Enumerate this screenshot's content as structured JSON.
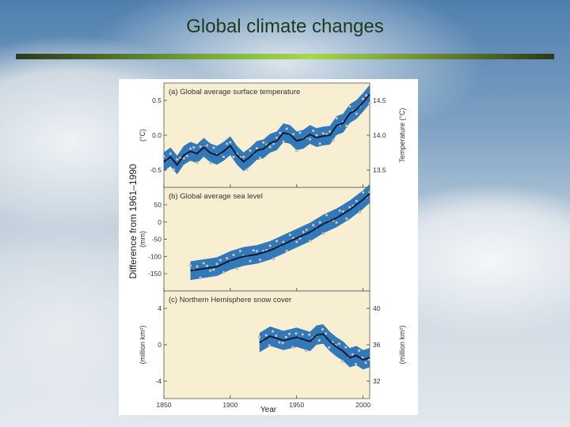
{
  "slide": {
    "title": "Global climate changes"
  },
  "figure": {
    "shared_ylabel": "Difference from 1961–1990",
    "xlabel": "Year",
    "x_ticks": [
      "1850",
      "1900",
      "1950",
      "2000"
    ]
  },
  "colors": {
    "panel_bg": "#f8eed1",
    "band": "#1f6fb5",
    "line": "#0b1a3a",
    "points": "#c8c8c8",
    "title_rule": "#8cc63f"
  },
  "chart_data": [
    {
      "type": "line",
      "title": "(a) Global average surface temperature",
      "ylabel": "(°C)",
      "y2label": "Temperature (°C)",
      "y_ticks": [
        "0.5",
        "0.0",
        "-0.5"
      ],
      "y2_ticks": [
        "14.5",
        "14.0",
        "13.5"
      ],
      "ylim": [
        -0.7,
        0.6
      ],
      "xlim": [
        1850,
        2005
      ],
      "band": "uncertainty range",
      "x": [
        1850,
        1855,
        1860,
        1865,
        1870,
        1875,
        1880,
        1885,
        1890,
        1895,
        1900,
        1905,
        1910,
        1915,
        1920,
        1925,
        1930,
        1935,
        1940,
        1945,
        1950,
        1955,
        1960,
        1965,
        1970,
        1975,
        1980,
        1985,
        1990,
        1995,
        2000,
        2005
      ],
      "values": [
        -0.38,
        -0.32,
        -0.42,
        -0.3,
        -0.25,
        -0.28,
        -0.2,
        -0.27,
        -0.3,
        -0.25,
        -0.18,
        -0.3,
        -0.38,
        -0.32,
        -0.24,
        -0.22,
        -0.15,
        -0.12,
        -0.02,
        -0.04,
        -0.12,
        -0.1,
        -0.04,
        -0.08,
        -0.06,
        -0.05,
        0.07,
        0.1,
        0.22,
        0.27,
        0.36,
        0.46
      ]
    },
    {
      "type": "line",
      "title": "(b) Global average sea level",
      "ylabel": "(mm)",
      "y_ticks": [
        "50",
        "0",
        "-50",
        "-100",
        "-150"
      ],
      "ylim": [
        -185,
        70
      ],
      "xlim": [
        1850,
        2005
      ],
      "band": "uncertainty range",
      "x": [
        1870,
        1880,
        1890,
        1900,
        1910,
        1920,
        1930,
        1940,
        1950,
        1960,
        1970,
        1980,
        1990,
        2000,
        2005
      ],
      "values": [
        -135,
        -130,
        -125,
        -110,
        -100,
        -95,
        -85,
        -70,
        -55,
        -40,
        -20,
        -5,
        15,
        40,
        55
      ]
    },
    {
      "type": "line",
      "title": "(c) Northern Hemisphere snow cover",
      "ylabel": "(million km²)",
      "y2label": "(million km²)",
      "y_ticks": [
        "4",
        "0",
        "-4"
      ],
      "y2_ticks": [
        "40",
        "36",
        "32"
      ],
      "ylim": [
        -5,
        5
      ],
      "xlim": [
        1850,
        2005
      ],
      "band": "uncertainty range",
      "x": [
        1922,
        1930,
        1940,
        1950,
        1960,
        1965,
        1970,
        1975,
        1980,
        1985,
        1990,
        1995,
        2000,
        2005
      ],
      "values": [
        0.2,
        0.8,
        0.4,
        0.7,
        0.3,
        0.9,
        1.0,
        0.3,
        -0.2,
        -0.6,
        -1.2,
        -1.0,
        -1.4,
        -1.2
      ]
    }
  ]
}
